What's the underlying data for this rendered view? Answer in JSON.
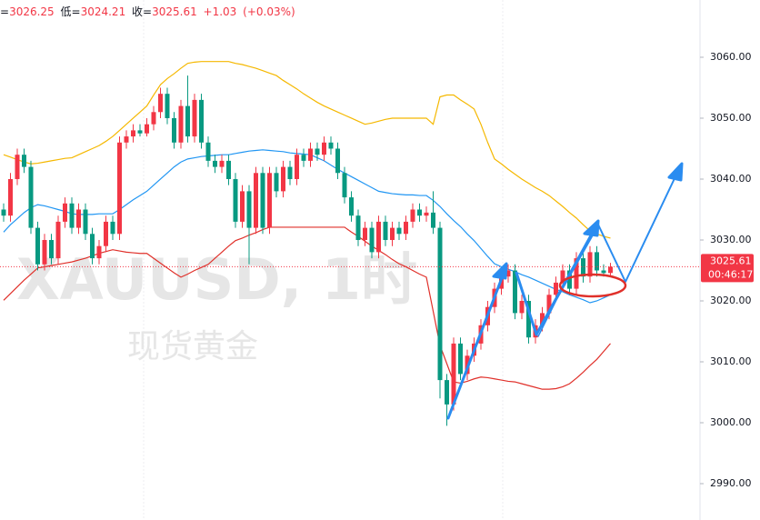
{
  "chart_data": {
    "type": "candlestick",
    "watermark_symbol": "XAUUSD, 1时",
    "watermark_name": "现货黄金",
    "ohlc_labels": {
      "high": "=",
      "low": "低=",
      "close": "收="
    },
    "change_label": "+1.03",
    "change_pct_label": "(+0.03%)",
    "countdown": "00:46:17",
    "up_color": "#f23645",
    "down_color": "#089981",
    "price_line": true,
    "ylim": [
      2984.03,
      3069.4
    ],
    "yticks": [
      {
        "value": 2990,
        "label": "2990.00"
      },
      {
        "value": 3000,
        "label": "3000.00"
      },
      {
        "value": 3010,
        "label": "3010.00"
      },
      {
        "value": 3020,
        "label": "3020.00"
      },
      {
        "value": 3030,
        "label": "3030.00"
      },
      {
        "value": 3040,
        "label": "3040.00"
      },
      {
        "value": 3050,
        "label": "3050.00"
      },
      {
        "value": 3060,
        "label": "3060.00"
      }
    ],
    "open": [
      3035,
      3034,
      3040,
      3044,
      3042,
      3032,
      3026,
      3030,
      3027,
      3033,
      3036,
      3032,
      3035,
      3031,
      3027,
      3029,
      3033,
      3031,
      3046,
      3047,
      3048,
      3047.5,
      3049,
      3051,
      3054,
      3050,
      3046,
      3052,
      3047,
      3053,
      3046,
      3043,
      3042,
      3043,
      3040,
      3033,
      3038,
      3032,
      3041,
      3032,
      3041,
      3038,
      3042,
      3040,
      3044,
      3043,
      3045,
      3044,
      3046,
      3045,
      3041,
      3037,
      3034,
      3030,
      3032,
      3028,
      3033,
      3030,
      3032,
      3031,
      3033,
      3035,
      3034,
      3034.5,
      3032,
      3007,
      3003,
      3013,
      3008,
      3011,
      3013,
      3016,
      3019,
      3022,
      3024,
      3025,
      3018,
      3020,
      3014,
      3016,
      3018,
      3021,
      3023,
      3025,
      3022,
      3027,
      3024,
      3028,
      3025,
      3024.58
    ],
    "high": [
      3036,
      3041,
      3045,
      3045,
      3043,
      3033,
      3031,
      3031,
      3034,
      3037,
      3037,
      3036,
      3036,
      3032,
      3030,
      3034,
      3034,
      3047,
      3048,
      3049,
      3049,
      3050,
      3052,
      3055,
      3055,
      3051,
      3053,
      3057,
      3054,
      3054,
      3047,
      3044,
      3044,
      3044,
      3041,
      3039,
      3039,
      3042,
      3042,
      3042,
      3042,
      3043,
      3043,
      3045,
      3045,
      3046,
      3046,
      3047,
      3047,
      3046,
      3042,
      3038,
      3035,
      3033,
      3033,
      3034,
      3034,
      3033,
      3033,
      3034,
      3036,
      3036,
      3035.5,
      3038,
      3033,
      3008,
      3014,
      3014,
      3012,
      3014,
      3017,
      3020,
      3023,
      3025,
      3026,
      3026,
      3021,
      3021,
      3017,
      3019,
      3022,
      3024,
      3026,
      3026,
      3028,
      3028,
      3029,
      3029,
      3026,
      3026.25
    ],
    "low": [
      3033,
      3033,
      3039,
      3041,
      3031,
      3025,
      3025,
      3026,
      3026,
      3032,
      3031,
      3031,
      3030,
      3026,
      3026,
      3028,
      3030,
      3030,
      3045,
      3046,
      3047,
      3047,
      3048,
      3050,
      3049,
      3045,
      3045,
      3046,
      3046,
      3045,
      3042,
      3041,
      3041,
      3039,
      3032,
      3032,
      3026,
      3031,
      3031,
      3031,
      3037,
      3037,
      3039,
      3039,
      3042,
      3042,
      3043,
      3043,
      3044,
      3040,
      3036,
      3033,
      3029,
      3029,
      3027,
      3027,
      3029,
      3029,
      3030,
      3030,
      3032,
      3033,
      3033,
      3031,
      3004,
      2999.5,
      3002,
      3007,
      3007,
      3010,
      3012,
      3015,
      3018,
      3021,
      3023,
      3017,
      3017,
      3013,
      3013,
      3015,
      3017,
      3020,
      3022,
      3021,
      3021,
      3023,
      3023,
      3024,
      3024,
      3024.21
    ],
    "close": [
      3034,
      3040,
      3044,
      3042,
      3032,
      3026,
      3030,
      3027,
      3033,
      3036,
      3032,
      3035,
      3031,
      3027,
      3029,
      3033,
      3031,
      3046,
      3047,
      3048,
      3047.5,
      3049,
      3051,
      3054,
      3050,
      3046,
      3052,
      3047,
      3053,
      3046,
      3043,
      3042,
      3043,
      3040,
      3033,
      3038,
      3032,
      3041,
      3032,
      3041,
      3038,
      3042,
      3040,
      3044,
      3043,
      3045,
      3044,
      3046,
      3045,
      3041,
      3037,
      3034,
      3030,
      3032,
      3028,
      3033,
      3030,
      3032,
      3031,
      3033,
      3035,
      3034,
      3034.5,
      3032,
      3007,
      3003,
      3013,
      3008,
      3011,
      3013,
      3016,
      3019,
      3022,
      3024,
      3025,
      3018,
      3020,
      3014,
      3016,
      3018,
      3021,
      3023,
      3025,
      3022,
      3027,
      3024,
      3028,
      3025,
      3024.58,
      3025.61
    ],
    "overlays": [
      {
        "color": "#f5b800",
        "values": [
          3044,
          3043.6,
          3043.2,
          3042.8,
          3042.5,
          3042.6,
          3042.8,
          3043,
          3043.2,
          3043.4,
          3043.5,
          3044,
          3044.5,
          3045,
          3045.5,
          3046.2,
          3047,
          3048,
          3049,
          3050,
          3051,
          3052,
          3053.8,
          3055.5,
          3056.5,
          3057.3,
          3058.2,
          3059,
          3059.2,
          3059.3,
          3059.3,
          3059.3,
          3059.3,
          3059.3,
          3059,
          3058.8,
          3058.5,
          3058.2,
          3057.8,
          3057.4,
          3057,
          3056.2,
          3055.5,
          3054.8,
          3054,
          3053.3,
          3052.6,
          3052,
          3051.5,
          3051,
          3050.5,
          3050,
          3049.5,
          3049,
          3049.2,
          3049.5,
          3049.8,
          3050,
          3050,
          3050,
          3050,
          3050,
          3050,
          3049,
          3053.5,
          3053.8,
          3053.8,
          3053,
          3052.3,
          3051.5,
          3049,
          3046,
          3043.3,
          3042.5,
          3041.6,
          3040.8,
          3040,
          3039.3,
          3038.6,
          3038,
          3037.3,
          3036.4,
          3035.5,
          3034.5,
          3033.6,
          3032.5,
          3031.5,
          3031,
          3030.6,
          3030.3
        ]
      },
      {
        "color": "#2196f3",
        "values": [
          3031.3,
          3032.5,
          3033.5,
          3034.5,
          3035.3,
          3035.8,
          3035.6,
          3035.3,
          3035,
          3034.7,
          3034.3,
          3034.2,
          3034.2,
          3034.2,
          3034.3,
          3034.3,
          3034.3,
          3035,
          3035.8,
          3036.6,
          3037.3,
          3038,
          3039,
          3040,
          3041,
          3042,
          3042.8,
          3043.3,
          3043.5,
          3043.7,
          3043.8,
          3043.9,
          3044,
          3044,
          3044.2,
          3044.4,
          3044.6,
          3044.7,
          3044.8,
          3044.7,
          3044.6,
          3044.5,
          3044.3,
          3044.2,
          3044.1,
          3044,
          3043.5,
          3043,
          3042.3,
          3041.6,
          3041,
          3040.4,
          3039.8,
          3039.2,
          3038.6,
          3038,
          3037.8,
          3037.6,
          3037.5,
          3037.4,
          3037.4,
          3037.3,
          3037.3,
          3036.5,
          3035.5,
          3034.3,
          3033.2,
          3032.2,
          3031,
          3029.9,
          3028.6,
          3027.3,
          3026.1,
          3025.6,
          3025.2,
          3024.8,
          3024.3,
          3023.9,
          3023.4,
          3022.9,
          3022.4,
          3021.9,
          3021.5,
          3021,
          3020.6,
          3020.2,
          3019.7,
          3020,
          3020.5,
          3021
        ]
      },
      {
        "color": "#e0302a",
        "values": [
          3020.1,
          3021.2,
          3022.3,
          3023.4,
          3024.4,
          3025.4,
          3025.6,
          3025.8,
          3026,
          3026.2,
          3026.4,
          3026.7,
          3027,
          3027.4,
          3027.8,
          3028.1,
          3028.4,
          3028.2,
          3028,
          3027.9,
          3027.8,
          3027.8,
          3027,
          3026.2,
          3025.4,
          3024.6,
          3023.9,
          3024.4,
          3025,
          3025.5,
          3026,
          3027,
          3028,
          3029,
          3029.9,
          3030.3,
          3030.8,
          3031.2,
          3031.7,
          3032.1,
          3032.1,
          3032.1,
          3032.1,
          3032.1,
          3032.1,
          3032.1,
          3032.1,
          3032.1,
          3032.1,
          3032.1,
          3032.1,
          3031.3,
          3030.6,
          3029.8,
          3029,
          3028.3,
          3027.6,
          3026.8,
          3026.1,
          3025.6,
          3025,
          3024.4,
          3023.9,
          3018.3,
          3012.7,
          3009.7,
          3006.7,
          3006.5,
          3006.8,
          3007.2,
          3007.5,
          3007.4,
          3007.2,
          3007,
          3006.8,
          3006.7,
          3006.4,
          3006.1,
          3005.8,
          3005.5,
          3005.5,
          3005.6,
          3005.9,
          3006.4,
          3007.3,
          3008.3,
          3009.4,
          3010.4,
          3011.7,
          3013
        ]
      }
    ]
  }
}
